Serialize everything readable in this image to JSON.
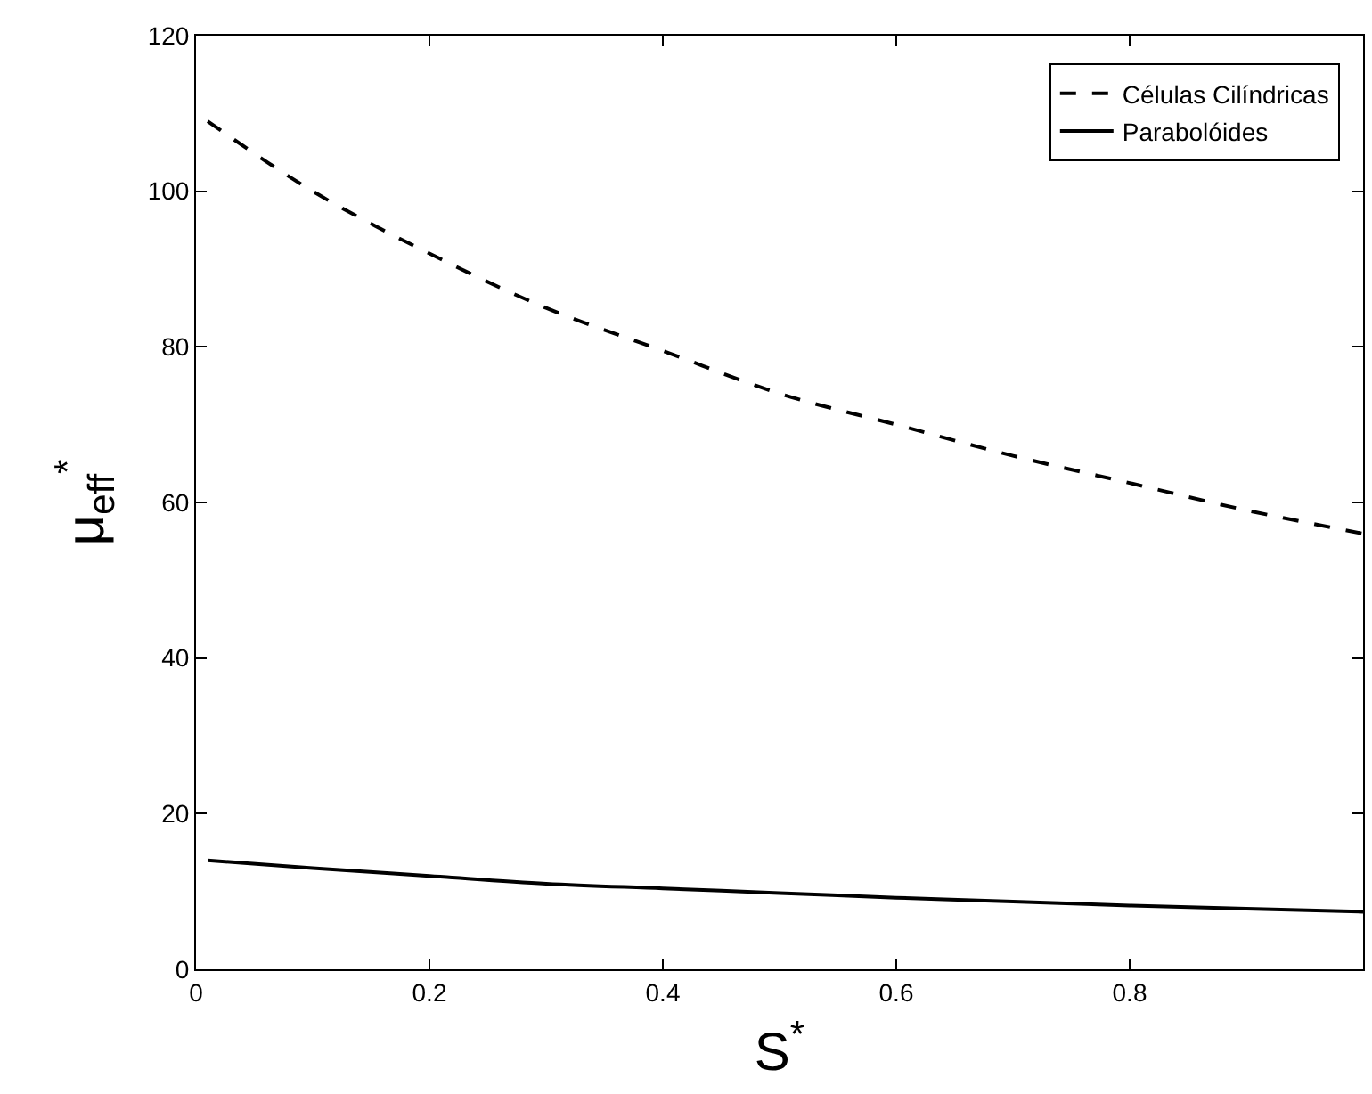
{
  "chart_data": {
    "type": "line",
    "xlabel": "S$^{*}$",
    "ylabel": "μ$_{eff}$$^{*}$",
    "xlim": [
      0,
      1
    ],
    "xticks": [
      0,
      0.2,
      0.4,
      0.6,
      0.8
    ],
    "ylim": [
      0,
      120
    ],
    "yticks": [
      0,
      20,
      40,
      60,
      80,
      100,
      120
    ],
    "legend": "top right",
    "marker": "none",
    "series": [
      {
        "name": "Células Cilíndricas",
        "color": "#000000",
        "line_style": "dashed",
        "x": [
          0.01,
          0.1,
          0.2,
          0.3,
          0.4,
          0.5,
          0.6,
          0.7,
          0.8,
          0.9,
          1.0
        ],
        "values": [
          109,
          100,
          92,
          85,
          79.5,
          74,
          70,
          66,
          62.5,
          59,
          56
        ]
      },
      {
        "name": "Parabolóides",
        "color": "#000000",
        "line_style": "solid",
        "x": [
          0.01,
          0.1,
          0.2,
          0.3,
          0.4,
          0.5,
          0.6,
          0.7,
          0.8,
          0.9,
          1.0
        ],
        "values": [
          14,
          13,
          12,
          11,
          10.4,
          9.8,
          9.2,
          8.7,
          8.2,
          7.8,
          7.4
        ]
      }
    ]
  }
}
